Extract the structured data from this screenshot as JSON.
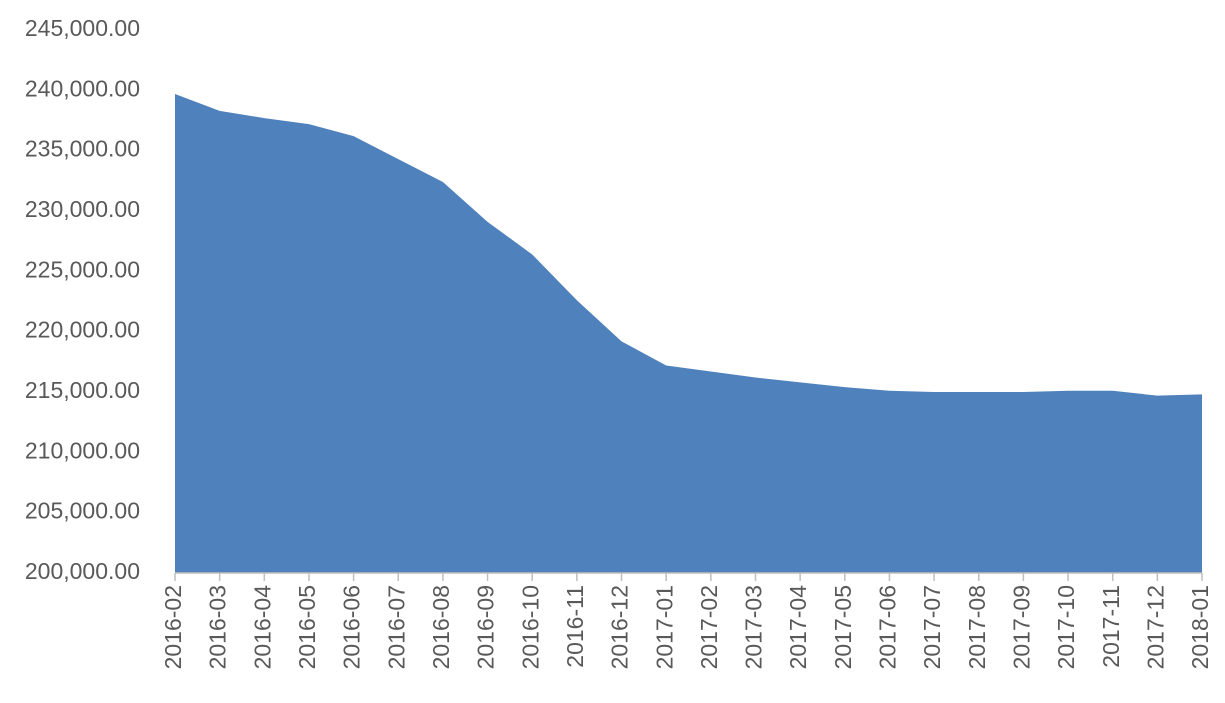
{
  "chart_data": {
    "type": "area",
    "categories": [
      "2016-02",
      "2016-03",
      "2016-04",
      "2016-05",
      "2016-06",
      "2016-07",
      "2016-08",
      "2016-09",
      "2016-10",
      "2016-11",
      "2016-12",
      "2017-01",
      "2017-02",
      "2017-03",
      "2017-04",
      "2017-05",
      "2017-06",
      "2017-07",
      "2017-08",
      "2017-09",
      "2017-10",
      "2017-11",
      "2017-12",
      "2018-01"
    ],
    "values": [
      239700,
      238300,
      237700,
      237200,
      236200,
      234300,
      232400,
      229100,
      226400,
      222600,
      219200,
      217200,
      216700,
      216200,
      215800,
      215400,
      215100,
      215000,
      215000,
      215000,
      215100,
      215100,
      214700,
      214800
    ],
    "color": "#4f81bd",
    "ylim": [
      200000,
      245000
    ],
    "yticks": [
      {
        "value": 200000,
        "label": "200,000.00"
      },
      {
        "value": 205000,
        "label": "205,000.00"
      },
      {
        "value": 210000,
        "label": "210,000.00"
      },
      {
        "value": 215000,
        "label": "215,000.00"
      },
      {
        "value": 220000,
        "label": "220,000.00"
      },
      {
        "value": 225000,
        "label": "225,000.00"
      },
      {
        "value": 230000,
        "label": "230,000.00"
      },
      {
        "value": 235000,
        "label": "235,000.00"
      },
      {
        "value": 240000,
        "label": "240,000.00"
      },
      {
        "value": 245000,
        "label": "245,000.00"
      }
    ],
    "grid": false
  }
}
